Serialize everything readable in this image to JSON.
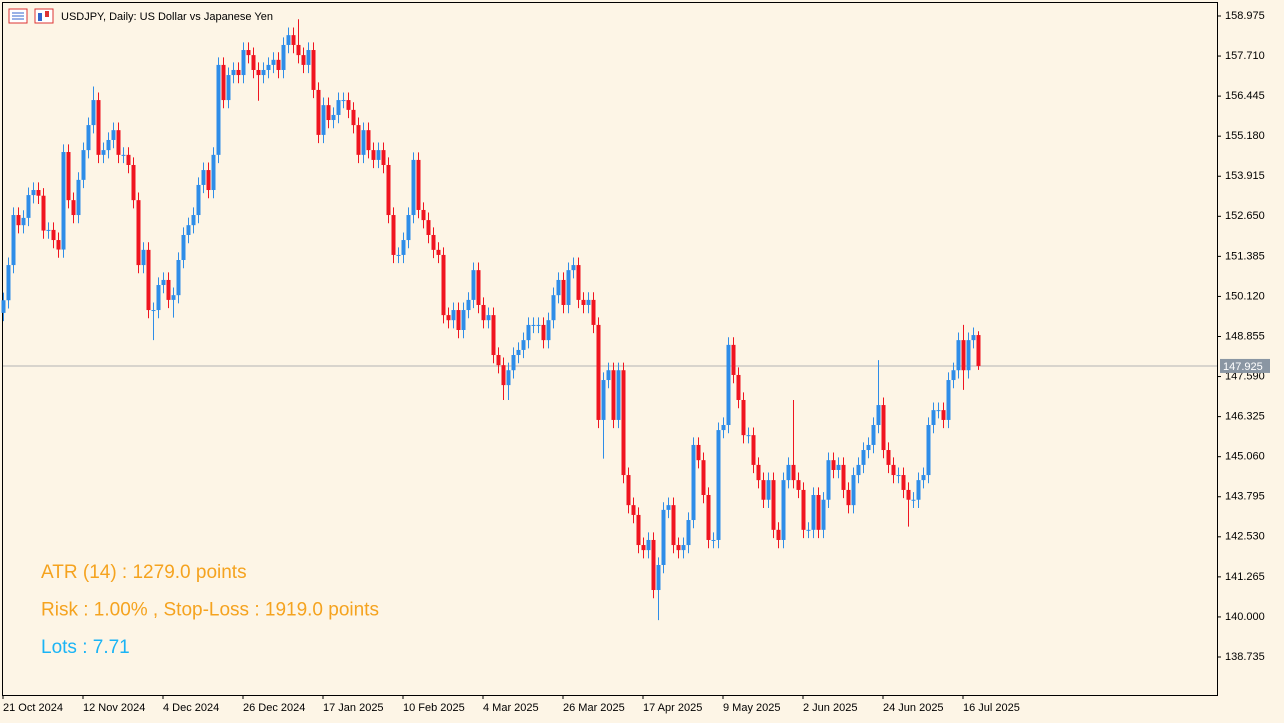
{
  "chart_data": {
    "type": "candlestick",
    "title": "USDJPY, Daily:  US Dollar vs Japanese Yen",
    "categories": [
      "21 Oct 2024",
      null,
      null,
      null,
      null,
      null,
      null,
      null,
      null,
      null,
      null,
      null,
      null,
      null,
      null,
      null,
      "12 Nov 2024",
      null,
      null,
      null,
      null,
      null,
      null,
      null,
      null,
      null,
      null,
      null,
      null,
      null,
      null,
      null,
      "4 Dec 2024",
      null,
      null,
      null,
      null,
      null,
      null,
      null,
      null,
      null,
      null,
      null,
      null,
      null,
      null,
      null,
      "26 Dec 2024",
      null,
      null,
      null,
      null,
      null,
      null,
      null,
      null,
      null,
      null,
      null,
      null,
      null,
      null,
      null,
      "17 Jan 2025",
      null,
      null,
      null,
      null,
      null,
      null,
      null,
      null,
      null,
      null,
      null,
      null,
      null,
      null,
      null,
      "10 Feb 2025",
      null,
      null,
      null,
      null,
      null,
      null,
      null,
      null,
      null,
      null,
      null,
      null,
      null,
      null,
      null,
      "4 Mar 2025",
      null,
      null,
      null,
      null,
      null,
      null,
      null,
      null,
      null,
      null,
      null,
      null,
      null,
      null,
      null,
      "26 Mar 2025",
      null,
      null,
      null,
      null,
      null,
      null,
      null,
      null,
      null,
      null,
      null,
      null,
      null,
      null,
      null,
      "17 Apr 2025",
      null,
      null,
      null,
      null,
      null,
      null,
      null,
      null,
      null,
      null,
      null,
      null,
      null,
      null,
      null,
      "9 May 2025",
      null,
      null,
      null,
      null,
      null,
      null,
      null,
      null,
      null,
      null,
      null,
      null,
      null,
      null,
      null,
      "2 Jun 2025",
      null,
      null,
      null,
      null,
      null,
      null,
      null,
      null,
      null,
      null,
      null,
      null,
      null,
      null,
      null,
      "24 Jun 2025",
      null,
      null,
      null,
      null,
      null,
      null,
      null,
      null,
      null,
      null,
      null,
      null,
      null,
      null,
      null,
      "16 Jul 2025",
      null,
      null,
      null
    ],
    "open": [
      149.6,
      150.0,
      151.11,
      152.69,
      152.37,
      152.6,
      153.32,
      153.48,
      153.3,
      152.2,
      152.22,
      151.9,
      151.6,
      154.68,
      153.16,
      152.69,
      153.8,
      154.74,
      155.53,
      156.32,
      154.59,
      154.74,
      155.06,
      155.37,
      154.59,
      154.59,
      154.27,
      153.16,
      151.11,
      151.59,
      149.69,
      149.69,
      150.48,
      150.64,
      150.01,
      150.16,
      151.27,
      152.06,
      152.37,
      152.69,
      153.64,
      154.11,
      153.48,
      154.59,
      157.43,
      156.32,
      157.11,
      157.27,
      157.11,
      157.9,
      157.74,
      157.27,
      157.11,
      157.27,
      157.43,
      157.59,
      157.27,
      158.06,
      158.37,
      158.06,
      157.74,
      157.43,
      157.9,
      156.64,
      155.22,
      156.16,
      155.69,
      155.85,
      156.32,
      156.32,
      156.01,
      155.53,
      154.59,
      155.37,
      154.74,
      154.43,
      154.74,
      154.27,
      152.69,
      151.43,
      151.43,
      151.9,
      152.69,
      154.43,
      152.85,
      152.53,
      152.06,
      151.59,
      151.43,
      149.53,
      149.37,
      149.69,
      149.06,
      149.69,
      150.01,
      150.95,
      149.85,
      149.37,
      149.53,
      148.27,
      147.95,
      147.32,
      147.79,
      148.27,
      148.43,
      148.74,
      149.22,
      149.22,
      149.22,
      148.74,
      149.37,
      150.16,
      150.64,
      149.85,
      150.95,
      151.11,
      150.01,
      149.85,
      150.01,
      149.22,
      146.22,
      147.48,
      147.79,
      146.22,
      147.79,
      144.48,
      143.53,
      143.22,
      142.27,
      142.11,
      142.43,
      140.85,
      141.64,
      143.38,
      143.53,
      142.27,
      142.11,
      142.27,
      143.06,
      145.43,
      144.95,
      143.85,
      142.43,
      142.43,
      145.9,
      146.06,
      148.59,
      147.64,
      146.85,
      145.74,
      145.74,
      144.8,
      144.32,
      143.7,
      144.32,
      142.75,
      142.43,
      144.32,
      144.8,
      144.32,
      144.01,
      142.75,
      142.75,
      143.85,
      142.75,
      143.7,
      144.95,
      144.64,
      144.8,
      144.01,
      143.53,
      144.48,
      144.8,
      145.27,
      145.43,
      146.06,
      146.69,
      145.27,
      144.8,
      144.48,
      144.48,
      144.01,
      143.7,
      143.7,
      144.32,
      144.48,
      146.06,
      146.53,
      146.53,
      146.22,
      147.48,
      147.79,
      148.74,
      147.79,
      148.74,
      148.9
    ],
    "high": [
      150.24,
      151.35,
      152.93,
      152.93,
      152.84,
      153.56,
      153.72,
      153.72,
      153.54,
      152.46,
      152.46,
      152.14,
      154.92,
      154.92,
      153.4,
      154.04,
      154.98,
      155.77,
      156.75,
      156.56,
      154.98,
      155.3,
      155.61,
      155.61,
      154.83,
      154.83,
      154.51,
      153.4,
      151.83,
      151.83,
      149.93,
      150.72,
      150.88,
      150.88,
      150.4,
      151.51,
      152.3,
      152.61,
      152.93,
      153.88,
      154.35,
      154.35,
      154.83,
      157.67,
      157.67,
      157.35,
      157.51,
      157.51,
      158.14,
      158.14,
      157.98,
      157.51,
      157.51,
      157.67,
      157.83,
      157.83,
      158.3,
      158.61,
      158.61,
      158.87,
      157.98,
      158.14,
      158.14,
      156.88,
      156.4,
      156.4,
      156.09,
      156.56,
      156.56,
      156.56,
      156.25,
      155.77,
      155.61,
      155.61,
      154.98,
      154.98,
      154.98,
      154.51,
      152.93,
      151.67,
      152.14,
      152.93,
      154.67,
      154.67,
      153.09,
      152.77,
      152.3,
      151.83,
      151.67,
      149.77,
      149.93,
      149.93,
      149.93,
      150.25,
      151.19,
      151.19,
      150.09,
      149.77,
      149.77,
      148.51,
      148.19,
      148.03,
      148.51,
      148.67,
      148.98,
      149.46,
      149.46,
      149.46,
      149.46,
      149.61,
      150.4,
      150.88,
      150.88,
      151.19,
      151.35,
      151.35,
      150.25,
      150.25,
      150.25,
      149.46,
      147.72,
      148.03,
      148.03,
      148.03,
      148.03,
      144.72,
      143.77,
      143.46,
      142.51,
      142.67,
      142.67,
      141.88,
      143.62,
      143.77,
      143.77,
      142.51,
      142.51,
      143.3,
      145.67,
      145.67,
      145.19,
      144.09,
      142.67,
      146.14,
      146.3,
      148.83,
      148.83,
      147.88,
      147.09,
      145.98,
      145.98,
      145.04,
      144.56,
      144.56,
      144.56,
      142.99,
      144.56,
      145.04,
      146.85,
      144.56,
      144.25,
      142.99,
      144.09,
      144.09,
      143.94,
      145.19,
      145.19,
      145.04,
      145.04,
      144.25,
      144.72,
      145.04,
      145.51,
      145.67,
      146.3,
      148.11,
      146.93,
      145.51,
      145.04,
      144.72,
      144.72,
      144.25,
      143.94,
      144.56,
      144.72,
      146.3,
      146.77,
      146.77,
      146.77,
      147.72,
      148.03,
      148.98,
      149.22,
      148.98,
      149.14,
      149.02
    ],
    "low": [
      149.34,
      149.74,
      150.85,
      152.11,
      152.11,
      152.34,
      153.06,
      153.04,
      151.94,
      151.94,
      151.64,
      151.34,
      151.34,
      152.9,
      152.43,
      152.43,
      153.54,
      154.48,
      155.27,
      154.33,
      154.33,
      154.48,
      154.8,
      154.33,
      154.33,
      154.01,
      152.9,
      150.85,
      150.85,
      149.43,
      148.74,
      149.43,
      150.22,
      149.75,
      149.45,
      149.9,
      151.01,
      151.8,
      152.11,
      152.43,
      153.38,
      153.22,
      153.22,
      154.33,
      156.06,
      156.06,
      156.85,
      156.85,
      156.85,
      157.48,
      157.01,
      156.3,
      156.85,
      157.01,
      157.17,
      157.01,
      157.01,
      157.8,
      157.8,
      157.48,
      157.17,
      157.17,
      156.38,
      154.96,
      154.96,
      155.43,
      155.43,
      155.59,
      156.06,
      155.75,
      155.27,
      154.33,
      154.33,
      154.48,
      154.17,
      154.17,
      154.01,
      152.43,
      151.17,
      151.17,
      151.17,
      151.64,
      152.43,
      152.59,
      152.27,
      151.8,
      151.33,
      151.17,
      149.27,
      149.11,
      149.11,
      148.8,
      148.8,
      149.43,
      149.75,
      149.59,
      149.11,
      149.11,
      148.01,
      147.69,
      146.85,
      146.85,
      147.53,
      148.01,
      148.17,
      148.48,
      148.96,
      148.96,
      148.48,
      148.48,
      149.11,
      149.9,
      149.59,
      149.59,
      150.69,
      149.75,
      149.59,
      149.59,
      148.96,
      145.96,
      145.0,
      147.22,
      145.96,
      145.96,
      144.22,
      143.27,
      142.96,
      142.01,
      141.85,
      141.85,
      140.59,
      139.9,
      141.38,
      143.12,
      142.01,
      141.85,
      141.85,
      142.01,
      142.8,
      144.69,
      143.59,
      142.17,
      142.17,
      142.17,
      145.64,
      145.8,
      147.38,
      146.59,
      145.48,
      145.48,
      144.54,
      144.06,
      143.44,
      143.44,
      142.49,
      142.17,
      142.17,
      144.06,
      144.06,
      143.75,
      142.49,
      142.49,
      142.49,
      142.49,
      142.49,
      143.44,
      144.38,
      144.38,
      143.75,
      143.27,
      143.27,
      144.22,
      144.54,
      145.01,
      145.17,
      145.8,
      145.01,
      144.54,
      144.22,
      144.22,
      143.75,
      142.85,
      143.44,
      143.44,
      144.06,
      144.22,
      145.8,
      146.27,
      145.96,
      145.96,
      147.22,
      147.53,
      147.17,
      147.53,
      148.48,
      147.8
    ],
    "close": [
      150.0,
      151.11,
      152.69,
      152.37,
      152.6,
      153.32,
      153.48,
      153.3,
      152.2,
      152.22,
      151.9,
      151.6,
      154.68,
      153.16,
      152.69,
      153.8,
      154.74,
      155.53,
      156.32,
      154.59,
      154.74,
      155.06,
      155.37,
      154.59,
      154.59,
      154.27,
      153.16,
      151.11,
      151.59,
      149.69,
      149.69,
      150.48,
      150.64,
      150.01,
      150.16,
      151.27,
      152.06,
      152.37,
      152.69,
      153.64,
      154.11,
      153.48,
      154.59,
      157.43,
      156.32,
      157.11,
      157.27,
      157.11,
      157.9,
      157.74,
      157.27,
      157.11,
      157.27,
      157.43,
      157.59,
      157.27,
      158.06,
      158.37,
      158.06,
      157.74,
      157.43,
      157.9,
      156.64,
      155.22,
      156.16,
      155.69,
      155.85,
      156.32,
      156.32,
      156.01,
      155.53,
      154.59,
      155.37,
      154.74,
      154.43,
      154.74,
      154.27,
      152.69,
      151.43,
      151.43,
      151.9,
      152.69,
      154.43,
      152.85,
      152.53,
      152.06,
      151.59,
      151.43,
      149.53,
      149.37,
      149.69,
      149.06,
      149.69,
      150.01,
      150.95,
      149.85,
      149.37,
      149.53,
      148.27,
      147.95,
      147.32,
      147.79,
      148.27,
      148.43,
      148.74,
      149.22,
      149.22,
      149.22,
      148.74,
      149.37,
      150.16,
      150.64,
      149.85,
      150.95,
      151.11,
      150.01,
      149.85,
      150.01,
      149.22,
      146.22,
      147.48,
      147.79,
      146.22,
      147.79,
      144.48,
      143.53,
      143.22,
      142.27,
      142.11,
      142.43,
      140.85,
      141.64,
      143.38,
      143.53,
      142.27,
      142.11,
      142.27,
      143.06,
      145.43,
      144.95,
      143.85,
      142.43,
      142.43,
      145.9,
      146.06,
      148.59,
      147.64,
      146.85,
      145.74,
      145.74,
      144.8,
      144.32,
      143.7,
      144.32,
      142.75,
      142.43,
      144.32,
      144.8,
      144.32,
      144.01,
      142.75,
      142.75,
      143.85,
      142.75,
      143.7,
      144.95,
      144.64,
      144.8,
      144.01,
      143.53,
      144.48,
      144.8,
      145.27,
      145.43,
      146.06,
      146.69,
      145.27,
      144.8,
      144.48,
      144.48,
      144.01,
      143.7,
      143.7,
      144.32,
      144.48,
      146.06,
      146.53,
      146.53,
      146.22,
      147.48,
      147.79,
      148.74,
      147.79,
      148.74,
      148.9,
      147.925
    ],
    "up_color": "#2e8de8",
    "down_color": "#f01420",
    "ylim": [
      137.535,
      159.385
    ],
    "yticks": [
      158.975,
      {
        "value": 157.71,
        "label": "157.710"
      },
      156.445,
      {
        "value": 155.18,
        "label": "155.180"
      },
      153.915,
      {
        "value": 152.65,
        "label": "152.650"
      },
      151.385,
      {
        "value": 150.12,
        "label": "150.120"
      },
      148.855,
      {
        "value": 147.59,
        "label": "147.590"
      },
      146.325,
      {
        "value": 145.06,
        "label": "145.060"
      },
      143.795,
      {
        "value": 142.53,
        "label": "142.530"
      },
      141.265,
      {
        "value": 140,
        "label": "140.000"
      },
      138.735
    ],
    "current_price": 147.925,
    "annotations": [
      {
        "text": "ATR (14) : 1279.0 points",
        "color": "#f5a31f"
      },
      {
        "text": "Risk : 1.00% , Stop-Loss : 1919.0 points",
        "color": "#f5a31f"
      },
      {
        "text": "Lots : 7.71",
        "color": "#1ab4f5"
      }
    ]
  }
}
